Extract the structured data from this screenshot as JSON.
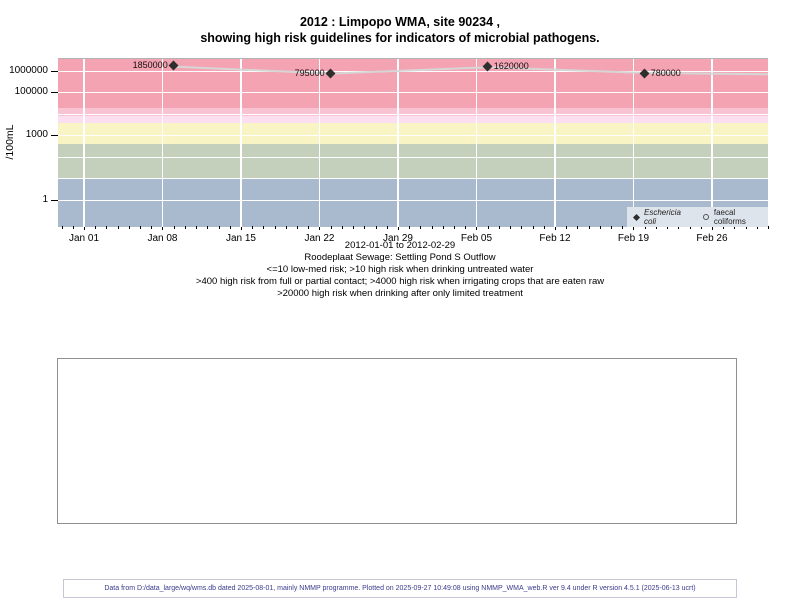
{
  "title": {
    "line1": "2012 : Limpopo WMA, site 90234 ,",
    "line2": "showing high risk guidelines for indicators of microbial pathogens."
  },
  "chart_data": {
    "type": "scatter",
    "title": "2012 : Limpopo WMA, site 90234 , showing high risk guidelines for indicators of microbial pathogens.",
    "ylabel": "/100mL",
    "y_axis": {
      "scale": "log",
      "range_approx": [
        0.05,
        3000000
      ],
      "ticks": [
        {
          "label": "1000000",
          "value": 1000000
        },
        {
          "label": "100000",
          "value": 100000
        },
        {
          "label": "1000",
          "value": 1000
        },
        {
          "label": "1",
          "value": 1
        }
      ]
    },
    "x_axis": {
      "start_date": "2012-01-01",
      "end_date": "2012-02-29",
      "range_label": "2012-01-01 to 2012-02-29",
      "tick_interval_days": 7,
      "tick_labels": [
        "Jan 01",
        "Jan 08",
        "Jan 15",
        "Jan 22",
        "Jan 29",
        "Feb 05",
        "Feb 12",
        "Feb 19",
        "Feb 26"
      ],
      "minor_ticks": "daily"
    },
    "series": [
      {
        "name": "Eschericia coli",
        "marker": "filled-diamond",
        "color": "#2e2e2e",
        "points": [
          {
            "date": "2012-01-09",
            "value": 1850000,
            "label": "1850000",
            "label_side": "left"
          },
          {
            "date": "2012-01-23",
            "value": 795000,
            "label": "795000",
            "label_side": "left"
          },
          {
            "date": "2012-02-06",
            "value": 1620000,
            "label": "1620000",
            "label_side": "right"
          },
          {
            "date": "2012-02-20",
            "value": 780000,
            "label": "780000",
            "label_side": "right"
          }
        ]
      },
      {
        "name": "faecal coliforms",
        "marker": "open-circle",
        "style": "line",
        "color": "#d6d6d6",
        "values_estimated": true,
        "points": [
          {
            "date": "2012-01-09",
            "value": 1600000
          },
          {
            "date": "2012-01-23",
            "value": 760000
          },
          {
            "date": "2012-02-06",
            "value": 1480000
          },
          {
            "date": "2012-02-20",
            "value": 820000
          },
          {
            "date": "2012-03-02",
            "value": 700000,
            "clipped_at_plot_edge": true
          }
        ]
      }
    ],
    "guideline_bands": [
      {
        "min": 20000,
        "max": null,
        "color": "#f4a3b2"
      },
      {
        "min": 8500,
        "max": 20000,
        "color": "#f8c3d2"
      },
      {
        "min": 4000,
        "max": 8500,
        "color": "#fbdff0"
      },
      {
        "min": 400,
        "max": 4000,
        "color": "#f8f4c3"
      },
      {
        "min": 10,
        "max": 400,
        "color": "#c4cfbc"
      },
      {
        "min": null,
        "max": 10,
        "color": "#a9b9ce"
      }
    ],
    "legend": {
      "position": "bottom-right-inside",
      "items": [
        {
          "symbol": "filled-diamond",
          "label": "Eschericia coli",
          "italic": true
        },
        {
          "symbol": "open-circle",
          "label": "faecal coliforms",
          "italic": false
        }
      ]
    },
    "grid": {
      "color": "#ffffff",
      "horizontal": "log-decades",
      "vertical": "weekly"
    }
  },
  "caption": {
    "lines": [
      "2012-01-01 to 2012-02-29",
      "Roodeplaat Sewage: Settling Pond S Outflow",
      "<=10 low-med risk; >10 high risk when drinking untreated water",
      ">400 high risk from full or partial contact; >4000 high risk when irrigating crops that are eaten raw",
      ">20000 high risk when drinking after only limited treatment"
    ]
  },
  "footer": {
    "text": "Data from D:/data_large/wq/wms.db dated 2025-08-01, mainly NMMP programme. Plotted on 2025-09-27 10:49:08 using NMMP_WMA_web.R ver 9.4 under R version 4.5.1 (2025-06-13 ucrt)"
  },
  "colors": {
    "legend_bg": "#dee4eb",
    "footer_text": "#3a3a8c",
    "plot_top_border": "#b3b3b3",
    "empty_box_border": "#8f8f8f",
    "footer_box_border": "#c6c6d6"
  }
}
